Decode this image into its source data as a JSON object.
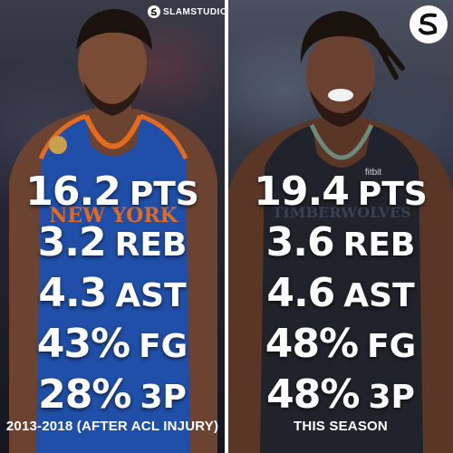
{
  "left": {
    "stats": [
      {
        "value": "16.2",
        "label": "PTS"
      },
      {
        "value": "3.2",
        "label": "REB"
      },
      {
        "value": "4.3",
        "label": "AST"
      },
      {
        "value": "43%",
        "label": "FG"
      },
      {
        "value": "28%",
        "label": "3P"
      }
    ],
    "caption": "2013-2018 (AFTER ACL INJURY)",
    "jersey_text": "NEW YORK",
    "brand": "SLAMSTUDIOS"
  },
  "right": {
    "stats": [
      {
        "value": "19.4",
        "label": "PTS"
      },
      {
        "value": "3.6",
        "label": "REB"
      },
      {
        "value": "4.6",
        "label": "AST"
      },
      {
        "value": "48%",
        "label": "FG"
      },
      {
        "value": "48%",
        "label": "3P"
      }
    ],
    "caption": "THIS SEASON",
    "jersey_text": "TIMBERWOLVES",
    "sponsor": "fitbit"
  },
  "colors": {
    "knicks_blue": "#1f4fa8",
    "knicks_orange": "#e56a1e",
    "wolves_jersey": "#20232b",
    "text": "#ffffff"
  },
  "icons": {
    "brand_icon": "slam-logo-icon",
    "right_logo": "slam-circle-logo-icon"
  }
}
